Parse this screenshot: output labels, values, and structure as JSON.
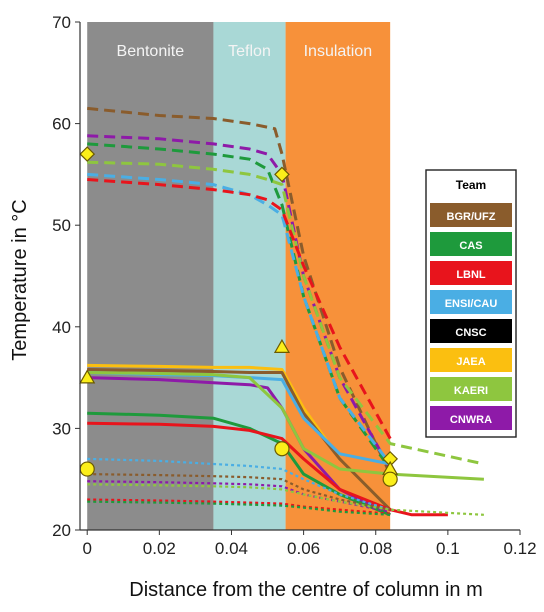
{
  "chart_data": {
    "type": "line",
    "title": "",
    "xlabel": "Distance from the centre of column in m",
    "ylabel": "Temperature in °C",
    "xlim": [
      -0.002,
      0.12
    ],
    "ylim": [
      20,
      70
    ],
    "xticks": [
      "0",
      "0.02",
      "0.04",
      "0.06",
      "0.08",
      "0.1",
      "0.12"
    ],
    "yticks": [
      "20",
      "30",
      "40",
      "50",
      "60",
      "70"
    ],
    "grid": false,
    "zones": [
      {
        "label": "Bentonite",
        "from": 0,
        "to": 0.035,
        "color": "#8c8c8c"
      },
      {
        "label": "Teflon",
        "from": 0.035,
        "to": 0.055,
        "color": "#a9d8d6"
      },
      {
        "label": "Insulation",
        "from": 0.055,
        "to": 0.084,
        "color": "#f7913a"
      }
    ],
    "legend": {
      "title": "Team",
      "position": "right",
      "entries": [
        {
          "label": "BGR/UFZ",
          "color": "#8a5c2c"
        },
        {
          "label": "CAS",
          "color": "#1e9a3c"
        },
        {
          "label": "LBNL",
          "color": "#e8141c"
        },
        {
          "label": "ENSI/CAU",
          "color": "#4aaee4"
        },
        {
          "label": "CNSC",
          "color": "#000000"
        },
        {
          "label": "JAEA",
          "color": "#fbbf10"
        },
        {
          "label": "KAERI",
          "color": "#8ec63f"
        },
        {
          "label": "CNWRA",
          "color": "#8e1aa8"
        }
      ]
    },
    "series": [
      {
        "team": "BGR/UFZ",
        "style": "dashed",
        "x": [
          0,
          0.02,
          0.035,
          0.045,
          0.052,
          0.054,
          0.06,
          0.07,
          0.084
        ],
        "y": [
          61.5,
          60.8,
          60.5,
          60,
          59.5,
          57,
          47,
          36,
          25.5
        ]
      },
      {
        "team": "CNWRA",
        "style": "dashed",
        "x": [
          0,
          0.02,
          0.035,
          0.045,
          0.05,
          0.054,
          0.06,
          0.07,
          0.084
        ],
        "y": [
          58.8,
          58.5,
          58,
          57.5,
          57,
          55,
          45,
          35,
          26
        ]
      },
      {
        "team": "CAS",
        "style": "dashed",
        "x": [
          0,
          0.02,
          0.035,
          0.045,
          0.05,
          0.054,
          0.06,
          0.07,
          0.084
        ],
        "y": [
          58,
          57.5,
          57,
          56.5,
          55.5,
          52,
          43,
          33,
          26
        ]
      },
      {
        "team": "KAERI",
        "style": "dashed",
        "x": [
          0,
          0.02,
          0.035,
          0.045,
          0.05,
          0.054,
          0.06,
          0.07,
          0.084,
          0.11
        ],
        "y": [
          56.2,
          56,
          55.5,
          55,
          54.5,
          54,
          45,
          35,
          28.5,
          26.5
        ]
      },
      {
        "team": "ENSI/CAU",
        "style": "dashed",
        "x": [
          0,
          0.02,
          0.035,
          0.045,
          0.05,
          0.054,
          0.06,
          0.07,
          0.084
        ],
        "y": [
          55,
          54.5,
          54,
          53,
          52,
          51,
          43,
          33,
          26.5
        ]
      },
      {
        "team": "LBNL",
        "style": "dashed",
        "x": [
          0,
          0.02,
          0.035,
          0.045,
          0.05,
          0.054,
          0.06,
          0.07,
          0.084
        ],
        "y": [
          54.5,
          54,
          53.5,
          53,
          52.5,
          51.5,
          46,
          38,
          29
        ]
      },
      {
        "team": "JAEA",
        "style": "solid",
        "x": [
          0,
          0.02,
          0.035,
          0.045,
          0.054,
          0.06,
          0.07,
          0.084
        ],
        "y": [
          36.2,
          36.1,
          36,
          36,
          35.8,
          32,
          27,
          22
        ]
      },
      {
        "team": "BGR/UFZ",
        "style": "solid",
        "x": [
          0,
          0.02,
          0.035,
          0.045,
          0.054,
          0.06,
          0.07,
          0.084
        ],
        "y": [
          35.8,
          35.7,
          35.6,
          35.5,
          35.5,
          31.5,
          27,
          22
        ]
      },
      {
        "team": "ENSI/CAU",
        "style": "solid",
        "x": [
          0,
          0.02,
          0.035,
          0.045,
          0.054,
          0.06,
          0.07,
          0.084
        ],
        "y": [
          35.5,
          35.3,
          35.2,
          35,
          34.8,
          31,
          27.5,
          26.5
        ]
      },
      {
        "team": "CNWRA",
        "style": "solid",
        "x": [
          0,
          0.02,
          0.035,
          0.045,
          0.05,
          0.054,
          0.06,
          0.07,
          0.084
        ],
        "y": [
          35,
          34.8,
          34.5,
          34.3,
          34,
          32,
          28,
          24,
          21.5
        ]
      },
      {
        "team": "CAS",
        "style": "solid",
        "x": [
          0,
          0.02,
          0.035,
          0.045,
          0.054,
          0.06,
          0.07,
          0.084
        ],
        "y": [
          31.5,
          31.3,
          31,
          30,
          28.5,
          25.5,
          23.5,
          21.5
        ]
      },
      {
        "team": "LBNL",
        "style": "solid",
        "x": [
          0,
          0.02,
          0.035,
          0.045,
          0.054,
          0.06,
          0.07,
          0.084,
          0.09,
          0.1
        ],
        "y": [
          30.5,
          30.4,
          30.2,
          29.8,
          29,
          27,
          24,
          22,
          21.5,
          21.5
        ]
      },
      {
        "team": "KAERI",
        "style": "solid",
        "x": [
          0,
          0.02,
          0.035,
          0.045,
          0.054,
          0.06,
          0.07,
          0.084,
          0.11
        ],
        "y": [
          35.5,
          35.4,
          35.3,
          35,
          32,
          28,
          26,
          25.5,
          25
        ]
      },
      {
        "team": "ENSI/CAU",
        "style": "dotted",
        "x": [
          0,
          0.02,
          0.035,
          0.045,
          0.054,
          0.06,
          0.07,
          0.084
        ],
        "y": [
          27,
          26.8,
          26.5,
          26.3,
          26,
          25,
          23.5,
          22
        ]
      },
      {
        "team": "BGR/UFZ",
        "style": "dotted",
        "x": [
          0,
          0.02,
          0.035,
          0.045,
          0.054,
          0.06,
          0.07,
          0.084
        ],
        "y": [
          25.5,
          25.4,
          25.3,
          25.2,
          25,
          24,
          23,
          22
        ]
      },
      {
        "team": "CNWRA",
        "style": "dotted",
        "x": [
          0,
          0.02,
          0.035,
          0.045,
          0.054,
          0.06,
          0.07,
          0.084
        ],
        "y": [
          24.8,
          24.7,
          24.6,
          24.5,
          24.3,
          23.5,
          22.8,
          21.8
        ]
      },
      {
        "team": "KAERI",
        "style": "dotted",
        "x": [
          0,
          0.02,
          0.035,
          0.045,
          0.054,
          0.06,
          0.07,
          0.084,
          0.11
        ],
        "y": [
          24.5,
          24.4,
          24.3,
          24.2,
          24,
          23.5,
          22.8,
          22,
          21.5
        ]
      },
      {
        "team": "LBNL",
        "style": "dotted",
        "x": [
          0,
          0.02,
          0.035,
          0.045,
          0.054,
          0.06,
          0.07,
          0.084
        ],
        "y": [
          23,
          22.9,
          22.8,
          22.7,
          22.6,
          22.3,
          22,
          21.6
        ]
      },
      {
        "team": "CAS",
        "style": "dotted",
        "x": [
          0,
          0.02,
          0.035,
          0.045,
          0.054,
          0.06,
          0.07,
          0.084
        ],
        "y": [
          22.8,
          22.7,
          22.6,
          22.5,
          22.4,
          22.2,
          21.8,
          21.5
        ]
      }
    ],
    "markers": [
      {
        "shape": "diamond",
        "x": 0,
        "y": 57,
        "color": "#fbee1a"
      },
      {
        "shape": "diamond",
        "x": 0.054,
        "y": 55,
        "color": "#fbee1a"
      },
      {
        "shape": "diamond",
        "x": 0.084,
        "y": 27,
        "color": "#fbee1a"
      },
      {
        "shape": "triangle",
        "x": 0,
        "y": 35,
        "color": "#fbee1a"
      },
      {
        "shape": "triangle",
        "x": 0.054,
        "y": 38,
        "color": "#fbee1a"
      },
      {
        "shape": "triangle",
        "x": 0.084,
        "y": 26,
        "color": "#fbee1a"
      },
      {
        "shape": "circle",
        "x": 0,
        "y": 26,
        "color": "#fbee1a"
      },
      {
        "shape": "circle",
        "x": 0.054,
        "y": 28,
        "color": "#fbee1a"
      },
      {
        "shape": "circle",
        "x": 0.084,
        "y": 25,
        "color": "#fbee1a"
      }
    ]
  }
}
